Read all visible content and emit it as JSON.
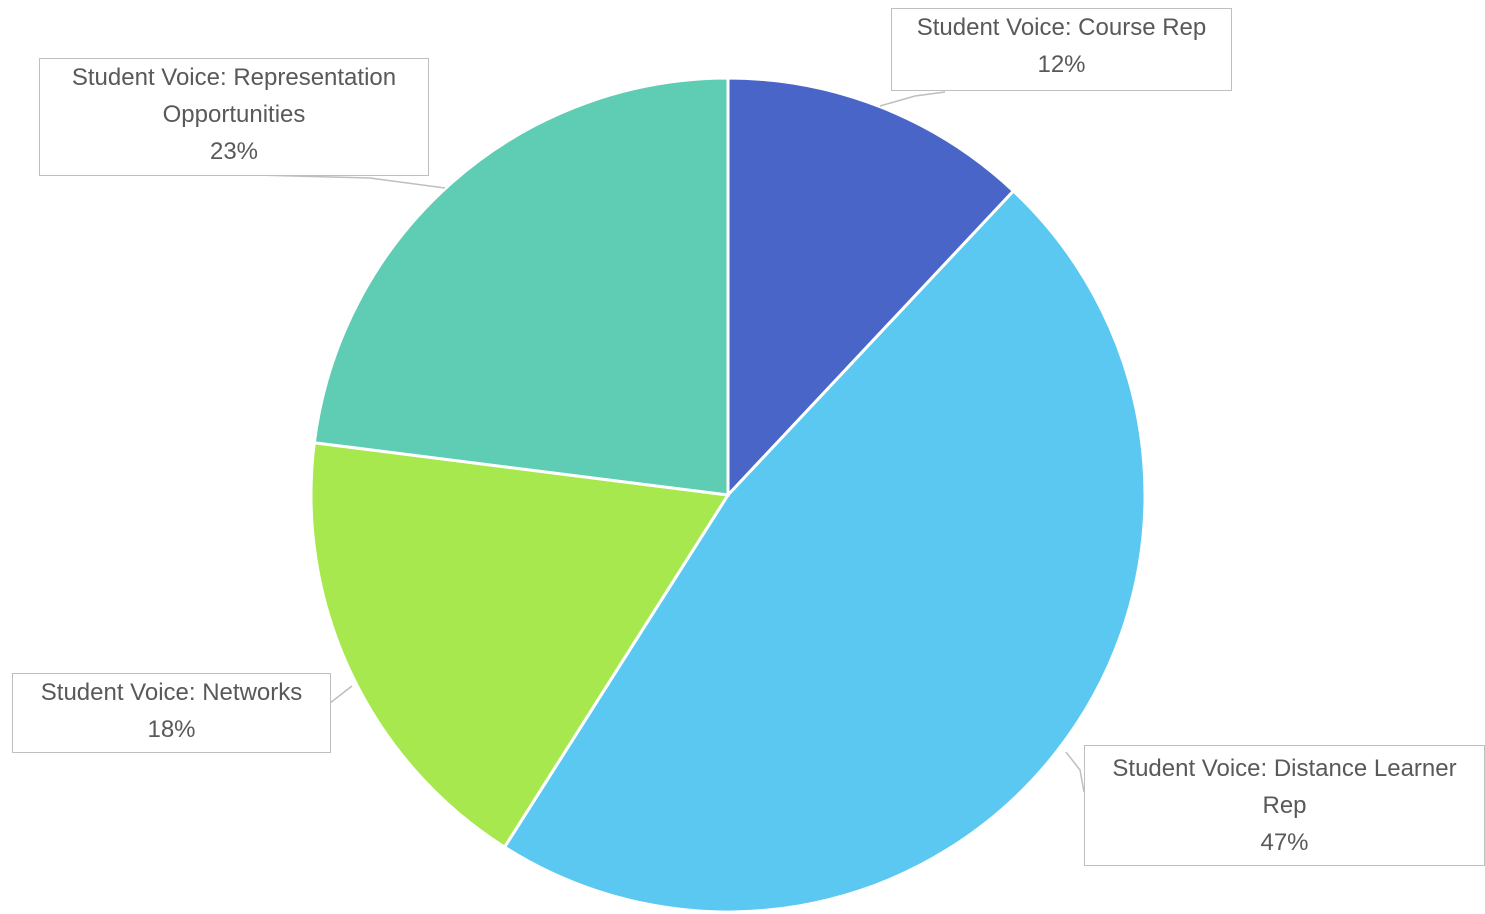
{
  "chart_data": {
    "type": "pie",
    "categories": [
      "Student Voice: Course Rep",
      "Student Voice: Distance Learner Rep",
      "Student Voice: Networks",
      "Student Voice: Representation Opportunities"
    ],
    "values": [
      12,
      47,
      18,
      23
    ],
    "value_labels": [
      "12%",
      "47%",
      "18%",
      "23%"
    ],
    "colors": [
      "#4a65c8",
      "#5bc8f1",
      "#a8e84f",
      "#5ecdb4"
    ],
    "start": "top",
    "direction": "clockwise"
  }
}
